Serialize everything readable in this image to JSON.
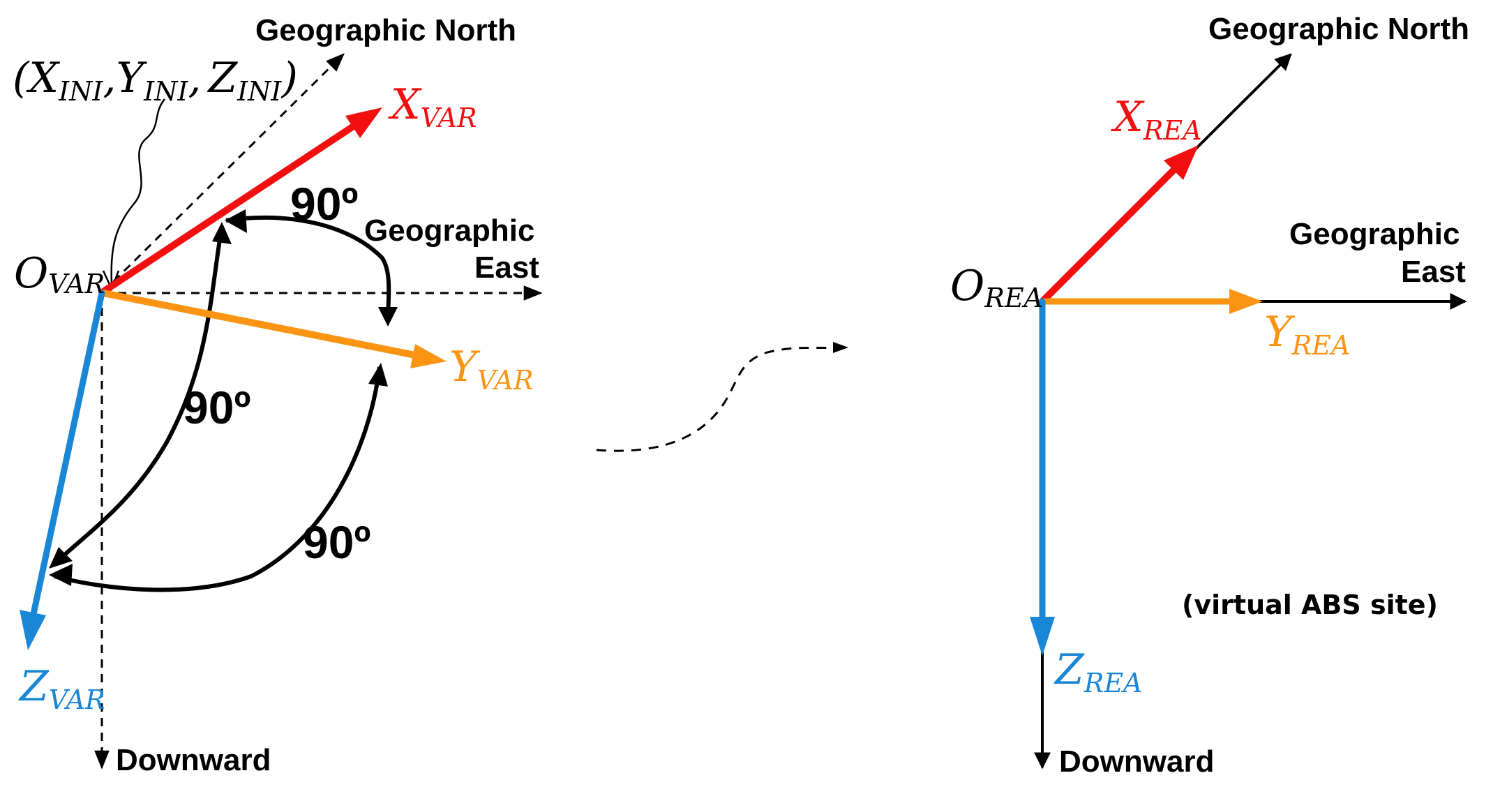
{
  "colors": {
    "x_axis": "#f20f0f",
    "y_axis": "#fa9412",
    "z_axis": "#1a86d6",
    "reference": "#000000"
  },
  "left_frame": {
    "initial_coords": {
      "open": "(",
      "x": "X",
      "x_sub": "INI",
      "sep1": ",",
      "y": "Y",
      "y_sub": "INI",
      "sep2": ",",
      "z": "Z",
      "z_sub": "INI",
      "close": ")"
    },
    "origin": {
      "main": "O",
      "sub": "VAR"
    },
    "x_axis": {
      "main": "X",
      "sub": "VAR"
    },
    "y_axis": {
      "main": "Y",
      "sub": "VAR"
    },
    "z_axis": {
      "main": "Z",
      "sub": "VAR"
    },
    "geo_north": "Geographic North",
    "geo_east_line1": "Geographic",
    "geo_east_line2": "East",
    "downward": "Downward",
    "angles": [
      "90º",
      "90º",
      "90º"
    ]
  },
  "right_frame": {
    "origin": {
      "main": "O",
      "sub": "REA"
    },
    "x_axis": {
      "main": "X",
      "sub": "REA"
    },
    "y_axis": {
      "main": "Y",
      "sub": "REA"
    },
    "z_axis": {
      "main": "Z",
      "sub": "REA"
    },
    "geo_north": "Geographic North",
    "geo_east_line1": "Geographic",
    "geo_east_line2": "East",
    "downward": "Downward",
    "site_note": "(virtual ABS site)"
  }
}
